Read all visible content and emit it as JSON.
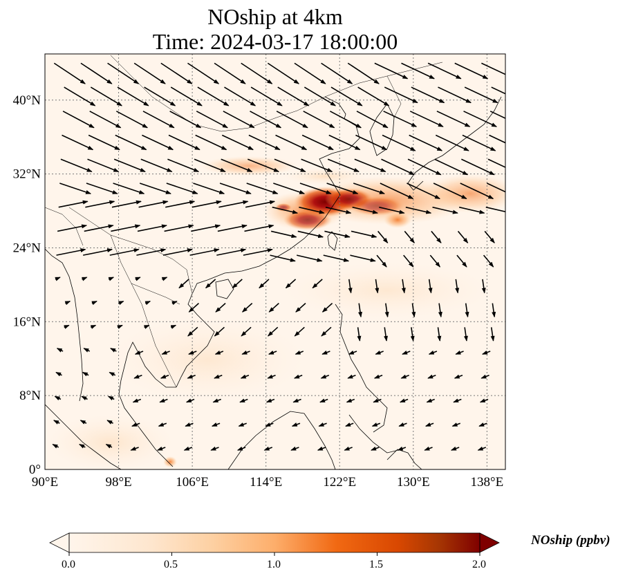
{
  "title": {
    "line1": "NOship at 4km",
    "line2": "Time: 2024-03-17 18:00:00"
  },
  "map": {
    "lon_range": [
      90,
      140
    ],
    "lat_range": [
      0,
      45
    ],
    "lon_ticks": [
      "90°E",
      "98°E",
      "106°E",
      "114°E",
      "122°E",
      "130°E",
      "138°E"
    ],
    "lat_ticks": [
      "0°",
      "8°N",
      "16°N",
      "24°N",
      "32°N",
      "40°N"
    ],
    "gridlines": "dotted",
    "background_color": "#fff5eb",
    "coastline_color": "#000000",
    "wind_arrows": "black quiver vectors"
  },
  "colorbar": {
    "label": "NOship (ppbv)",
    "min": 0.0,
    "max": 2.0,
    "ticks": [
      "0.0",
      "0.5",
      "1.0",
      "1.5",
      "2.0"
    ],
    "colormap": [
      "#fff5eb",
      "#fdd0a2",
      "#fdae6b",
      "#f16913",
      "#d94801",
      "#a63603",
      "#7f0000"
    ],
    "extend": "both"
  }
}
